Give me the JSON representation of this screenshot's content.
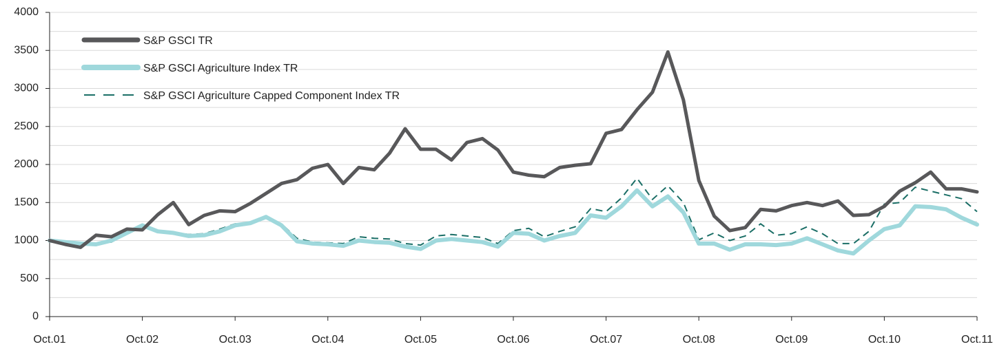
{
  "chart_data": {
    "type": "line",
    "categories": [
      "Oct.01",
      null,
      null,
      null,
      null,
      null,
      "Oct.02",
      null,
      null,
      null,
      null,
      null,
      "Oct.03",
      null,
      null,
      null,
      null,
      null,
      "Oct.04",
      null,
      null,
      null,
      null,
      null,
      "Oct.05",
      null,
      null,
      null,
      null,
      null,
      "Oct.06",
      null,
      null,
      null,
      null,
      null,
      "Oct.07",
      null,
      null,
      null,
      null,
      null,
      "Oct.08",
      null,
      null,
      null,
      null,
      null,
      "Oct.09",
      null,
      null,
      null,
      null,
      null,
      "Oct.10",
      null,
      null,
      null,
      null,
      null,
      "Oct.11"
    ],
    "series": [
      {
        "name": "S&P GSCI TR",
        "color": "#58585a",
        "width": 5,
        "dash": false,
        "values": [
          1000,
          950,
          910,
          1070,
          1050,
          1150,
          1140,
          1340,
          1500,
          1210,
          1330,
          1390,
          1380,
          1490,
          1620,
          1750,
          1800,
          1950,
          2000,
          1750,
          1960,
          1930,
          2150,
          2470,
          2200,
          2200,
          2060,
          2290,
          2340,
          2190,
          1900,
          1860,
          1840,
          1960,
          1990,
          2010,
          2410,
          2460,
          2720,
          2950,
          3480,
          2850,
          1790,
          1320,
          1130,
          1170,
          1410,
          1390,
          1460,
          1500,
          1460,
          1520,
          1330,
          1340,
          1450,
          1650,
          1760,
          1900,
          1680,
          1680,
          1640
        ]
      },
      {
        "name": "S&P GSCI Agriculture Index TR",
        "color": "#9fd8dc",
        "width": 6,
        "dash": false,
        "values": [
          1000,
          980,
          960,
          950,
          1000,
          1100,
          1200,
          1120,
          1100,
          1060,
          1070,
          1120,
          1200,
          1230,
          1310,
          1200,
          990,
          960,
          950,
          930,
          1000,
          980,
          970,
          920,
          890,
          1000,
          1020,
          1000,
          980,
          920,
          1100,
          1090,
          1000,
          1060,
          1100,
          1330,
          1300,
          1450,
          1660,
          1450,
          1580,
          1370,
          960,
          960,
          880,
          950,
          950,
          940,
          960,
          1030,
          950,
          870,
          830,
          1000,
          1150,
          1200,
          1450,
          1440,
          1410,
          1300,
          1210
        ]
      },
      {
        "name": "S&P GSCI Agriculture Capped Component Index TR",
        "color": "#1a6e66",
        "width": 2,
        "dash": true,
        "values": [
          1000,
          990,
          970,
          960,
          980,
          1090,
          1200,
          1130,
          1110,
          1080,
          1090,
          1150,
          1220,
          1240,
          1320,
          1220,
          1030,
          980,
          970,
          960,
          1050,
          1030,
          1020,
          960,
          940,
          1060,
          1080,
          1060,
          1040,
          960,
          1130,
          1160,
          1050,
          1120,
          1180,
          1420,
          1380,
          1560,
          1820,
          1540,
          1720,
          1500,
          1010,
          1100,
          1000,
          1060,
          1220,
          1070,
          1090,
          1180,
          1090,
          960,
          960,
          1120,
          1480,
          1500,
          1700,
          1650,
          1600,
          1550,
          1380
        ]
      }
    ],
    "ylim": [
      0,
      4000
    ],
    "yticks": [
      0,
      500,
      1000,
      1500,
      2000,
      2500,
      3000,
      3500,
      4000
    ],
    "minor_yticks": [
      250,
      750,
      1250,
      1750,
      2250,
      2750,
      3250,
      3750
    ],
    "grid": true,
    "legend": "top-left"
  }
}
